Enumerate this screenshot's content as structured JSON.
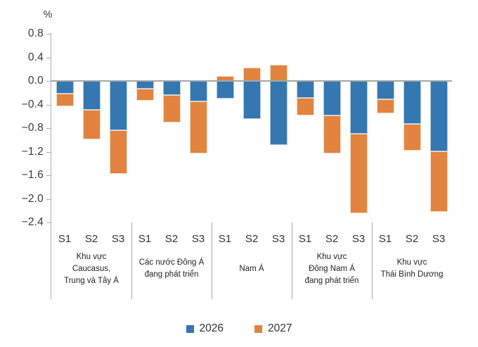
{
  "chart_data": {
    "type": "bar",
    "stacked": true,
    "unit_label": "%",
    "ylim": [
      -2.4,
      0.8
    ],
    "grid": false,
    "legend_position": "bottom-center",
    "yticks": [
      {
        "value": 0.8,
        "label": "0.8"
      },
      {
        "value": 0.4,
        "label": "0.4"
      },
      {
        "value": 0.0,
        "label": "0.0"
      },
      {
        "value": -0.4,
        "label": "−0.4"
      },
      {
        "value": -0.8,
        "label": "−0.8"
      },
      {
        "value": -1.2,
        "label": "−1.2"
      },
      {
        "value": -1.6,
        "label": "−1.6"
      },
      {
        "value": -2.0,
        "label": "−2.0"
      },
      {
        "value": -2.4,
        "label": "−2.4"
      }
    ],
    "legend": [
      {
        "name": "2026",
        "color": "#3577B1"
      },
      {
        "name": "2027",
        "color": "#E2833F"
      }
    ],
    "scenarios": [
      "S1",
      "S2",
      "S3"
    ],
    "groups": [
      {
        "label_lines": [
          "Khu vực",
          "Caucasus,",
          "Trung và Tây Á"
        ],
        "bars": [
          {
            "scenario": "S1",
            "y2026": -0.22,
            "y2027": -0.21
          },
          {
            "scenario": "S2",
            "y2026": -0.49,
            "y2027": -0.5
          },
          {
            "scenario": "S3",
            "y2026": -0.84,
            "y2027": -0.74
          }
        ]
      },
      {
        "label_lines": [
          "Các nước Đông Á",
          "đang phát triển"
        ],
        "bars": [
          {
            "scenario": "S1",
            "y2026": -0.13,
            "y2027": -0.2
          },
          {
            "scenario": "S2",
            "y2026": -0.24,
            "y2027": -0.46
          },
          {
            "scenario": "S3",
            "y2026": -0.34,
            "y2027": -0.89
          }
        ]
      },
      {
        "label_lines": [
          "Nam Á"
        ],
        "bars": [
          {
            "scenario": "S1",
            "y2026": -0.3,
            "y2027": 0.09
          },
          {
            "scenario": "S2",
            "y2026": -0.65,
            "y2027": 0.23
          },
          {
            "scenario": "S3",
            "y2026": -1.09,
            "y2027": 0.28
          }
        ]
      },
      {
        "label_lines": [
          "Khu vực",
          "Đông Nam Á",
          "đang phát triển"
        ],
        "bars": [
          {
            "scenario": "S1",
            "y2026": -0.29,
            "y2027": -0.29
          },
          {
            "scenario": "S2",
            "y2026": -0.59,
            "y2027": -0.64
          },
          {
            "scenario": "S3",
            "y2026": -0.89,
            "y2027": -1.36
          }
        ]
      },
      {
        "label_lines": [
          "Khu vực",
          "Thái Bình Dương"
        ],
        "bars": [
          {
            "scenario": "S1",
            "y2026": -0.31,
            "y2027": -0.24
          },
          {
            "scenario": "S2",
            "y2026": -0.73,
            "y2027": -0.45
          },
          {
            "scenario": "S3",
            "y2026": -1.19,
            "y2027": -1.03
          }
        ]
      }
    ]
  }
}
